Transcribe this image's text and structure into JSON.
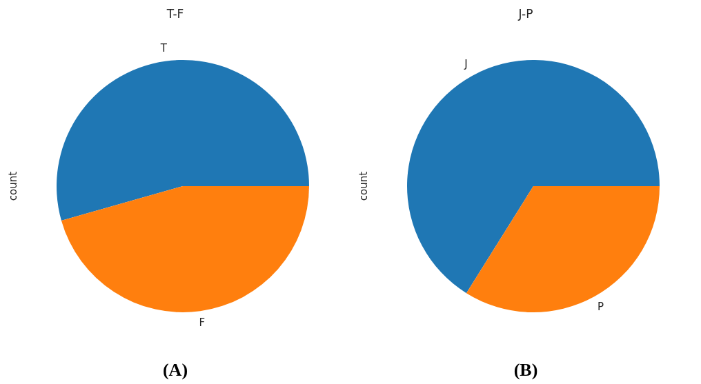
{
  "chart_data": [
    {
      "type": "pie",
      "title": "T-F",
      "ylabel": "count",
      "categories": [
        "T",
        "F"
      ],
      "values": [
        54.4,
        45.6
      ],
      "colors": [
        "#1f77b4",
        "#ff7f0e"
      ],
      "annotations": [
        "(A)"
      ]
    },
    {
      "type": "pie",
      "title": "J-P",
      "ylabel": "count",
      "categories": [
        "J",
        "P"
      ],
      "values": [
        66.1,
        33.9
      ],
      "colors": [
        "#1f77b4",
        "#ff7f0e"
      ],
      "annotations": [
        "(B)"
      ]
    }
  ]
}
